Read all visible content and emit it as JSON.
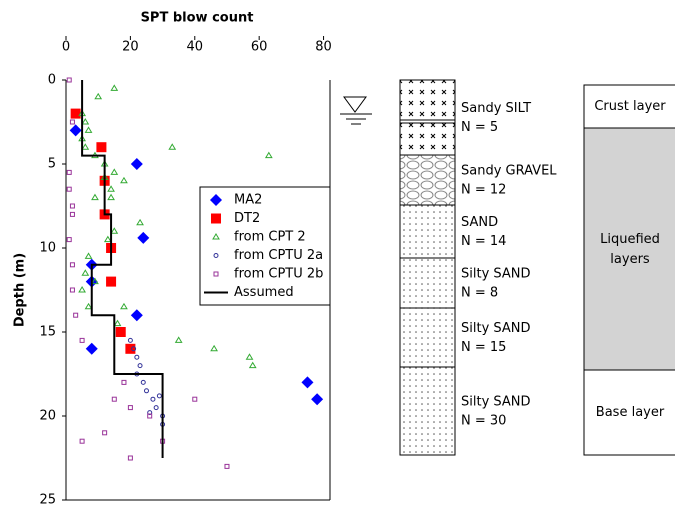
{
  "chart_data": {
    "type": "scatter",
    "x_label": "SPT blow count",
    "y_label": "Depth (m)",
    "xlim": [
      0,
      82
    ],
    "xticks": [
      0,
      20,
      40,
      60,
      80
    ],
    "ylim": [
      0,
      25
    ],
    "yticks": [
      0,
      5,
      10,
      15,
      20,
      25
    ],
    "y_inverted": true,
    "x_axis_position": "top",
    "grid": false,
    "legend": "right",
    "series": [
      {
        "name": "MA2",
        "color": "#0000ff",
        "marker": "diamond",
        "x": [
          3,
          22,
          24,
          8,
          8,
          22,
          8,
          75,
          78
        ],
        "values": [
          3,
          5,
          9.4,
          11,
          12,
          14,
          16,
          18,
          19
        ]
      },
      {
        "name": "DT2",
        "color": "#ff0000",
        "marker": "square",
        "x": [
          3,
          11,
          12,
          12,
          14,
          14,
          17,
          20
        ],
        "values": [
          2,
          4,
          6,
          8,
          10,
          12,
          15,
          16
        ]
      },
      {
        "name": "from CPT 2",
        "color": "#33aa33",
        "marker": "triangle",
        "x": [
          10,
          15,
          5,
          6,
          7,
          5,
          6,
          9,
          33,
          63,
          12,
          15,
          12,
          18,
          14,
          14,
          9,
          23,
          15,
          13,
          7,
          6,
          9,
          5,
          7,
          18,
          16,
          35,
          46,
          57,
          58
        ],
        "values": [
          1,
          0.5,
          2,
          2.5,
          3,
          3.5,
          4,
          4.5,
          4,
          4.5,
          5,
          5.5,
          5.8,
          6,
          6.5,
          7,
          7,
          8.5,
          9,
          9.5,
          10.5,
          11.5,
          12,
          12.5,
          13.5,
          13.5,
          14.5,
          15.5,
          16,
          16.5,
          17
        ]
      },
      {
        "name": "from CPTU 2a",
        "color": "#333399",
        "marker": "circle",
        "x": [
          20,
          21,
          22,
          23,
          22,
          24,
          25,
          27,
          28,
          30,
          30,
          29,
          26
        ],
        "values": [
          15.5,
          16,
          16.5,
          17,
          17.5,
          18,
          18.5,
          19,
          19.5,
          20,
          20.5,
          18.8,
          19.8
        ]
      },
      {
        "name": "from CPTU 2b",
        "color": "#993399",
        "marker": "square-open",
        "x": [
          1,
          2,
          1,
          1,
          2,
          2,
          1,
          2,
          2,
          3,
          5,
          18,
          15,
          20,
          26,
          12,
          40,
          30,
          5,
          20,
          50
        ],
        "values": [
          0,
          2.5,
          5.5,
          6.5,
          7.5,
          8,
          9.5,
          11,
          12.5,
          14,
          15.5,
          18,
          19,
          19.5,
          20,
          21,
          19,
          21.5,
          21.5,
          22.5,
          23
        ]
      },
      {
        "name": "Assumed",
        "color": "#000000",
        "marker": "line",
        "x": [
          5,
          5,
          12,
          12,
          14,
          14,
          8,
          8,
          15,
          15,
          30,
          30
        ],
        "values": [
          0,
          4.5,
          4.5,
          8,
          8,
          11,
          11,
          14,
          14,
          17.5,
          17.5,
          22.5
        ]
      }
    ]
  },
  "soil_column": [
    {
      "name": "Sandy SILT",
      "n": "N = 5"
    },
    {
      "name": "Sandy GRAVEL",
      "n": "N = 12"
    },
    {
      "name": "SAND",
      "n": "N = 14"
    },
    {
      "name": "Silty SAND",
      "n": "N = 8"
    },
    {
      "name": "Silty SAND",
      "n": "N = 15"
    },
    {
      "name": "Silty SAND",
      "n": "N = 30"
    }
  ],
  "zones": [
    "Crust layer",
    "Liquefied layers",
    "Base layer"
  ]
}
